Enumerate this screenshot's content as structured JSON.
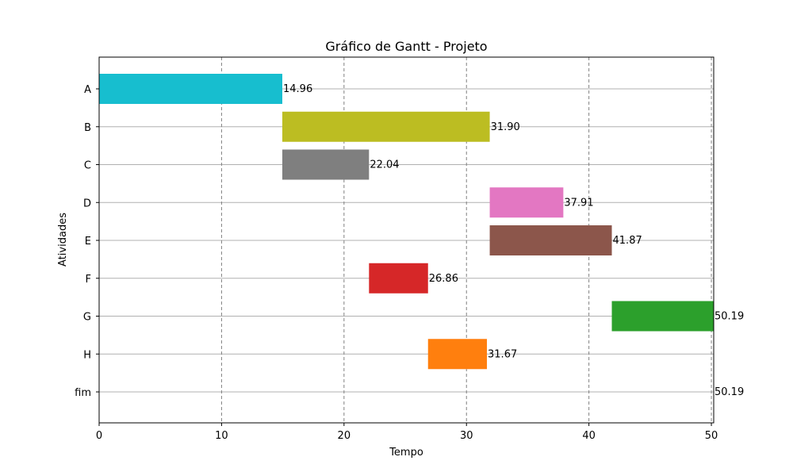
{
  "chart_data": {
    "type": "bar",
    "orientation": "horizontal-gantt",
    "title": "Gráfico de Gantt - Projeto",
    "xlabel": "Tempo",
    "ylabel": "Atividades",
    "xlim": [
      0,
      50.19
    ],
    "xticks": [
      0,
      10,
      20,
      30,
      40,
      50
    ],
    "x_grid": "dashed",
    "y_grid": "solid",
    "tasks": [
      {
        "name": "A",
        "start": 0.0,
        "end": 14.96,
        "label": "14.96",
        "color": "#17becf"
      },
      {
        "name": "B",
        "start": 14.96,
        "end": 31.9,
        "label": "31.90",
        "color": "#bcbd22"
      },
      {
        "name": "C",
        "start": 14.96,
        "end": 22.04,
        "label": "22.04",
        "color": "#7f7f7f"
      },
      {
        "name": "D",
        "start": 31.9,
        "end": 37.91,
        "label": "37.91",
        "color": "#e377c2"
      },
      {
        "name": "E",
        "start": 31.9,
        "end": 41.87,
        "label": "41.87",
        "color": "#8c564b"
      },
      {
        "name": "F",
        "start": 22.04,
        "end": 26.86,
        "label": "26.86",
        "color": "#d62728"
      },
      {
        "name": "G",
        "start": 41.87,
        "end": 50.19,
        "label": "50.19",
        "color": "#2ca02c"
      },
      {
        "name": "H",
        "start": 26.86,
        "end": 31.67,
        "label": "31.67",
        "color": "#ff7f0e"
      },
      {
        "name": "fim",
        "start": 50.19,
        "end": 50.19,
        "label": "50.19",
        "color": "#1f77b4"
      }
    ]
  }
}
